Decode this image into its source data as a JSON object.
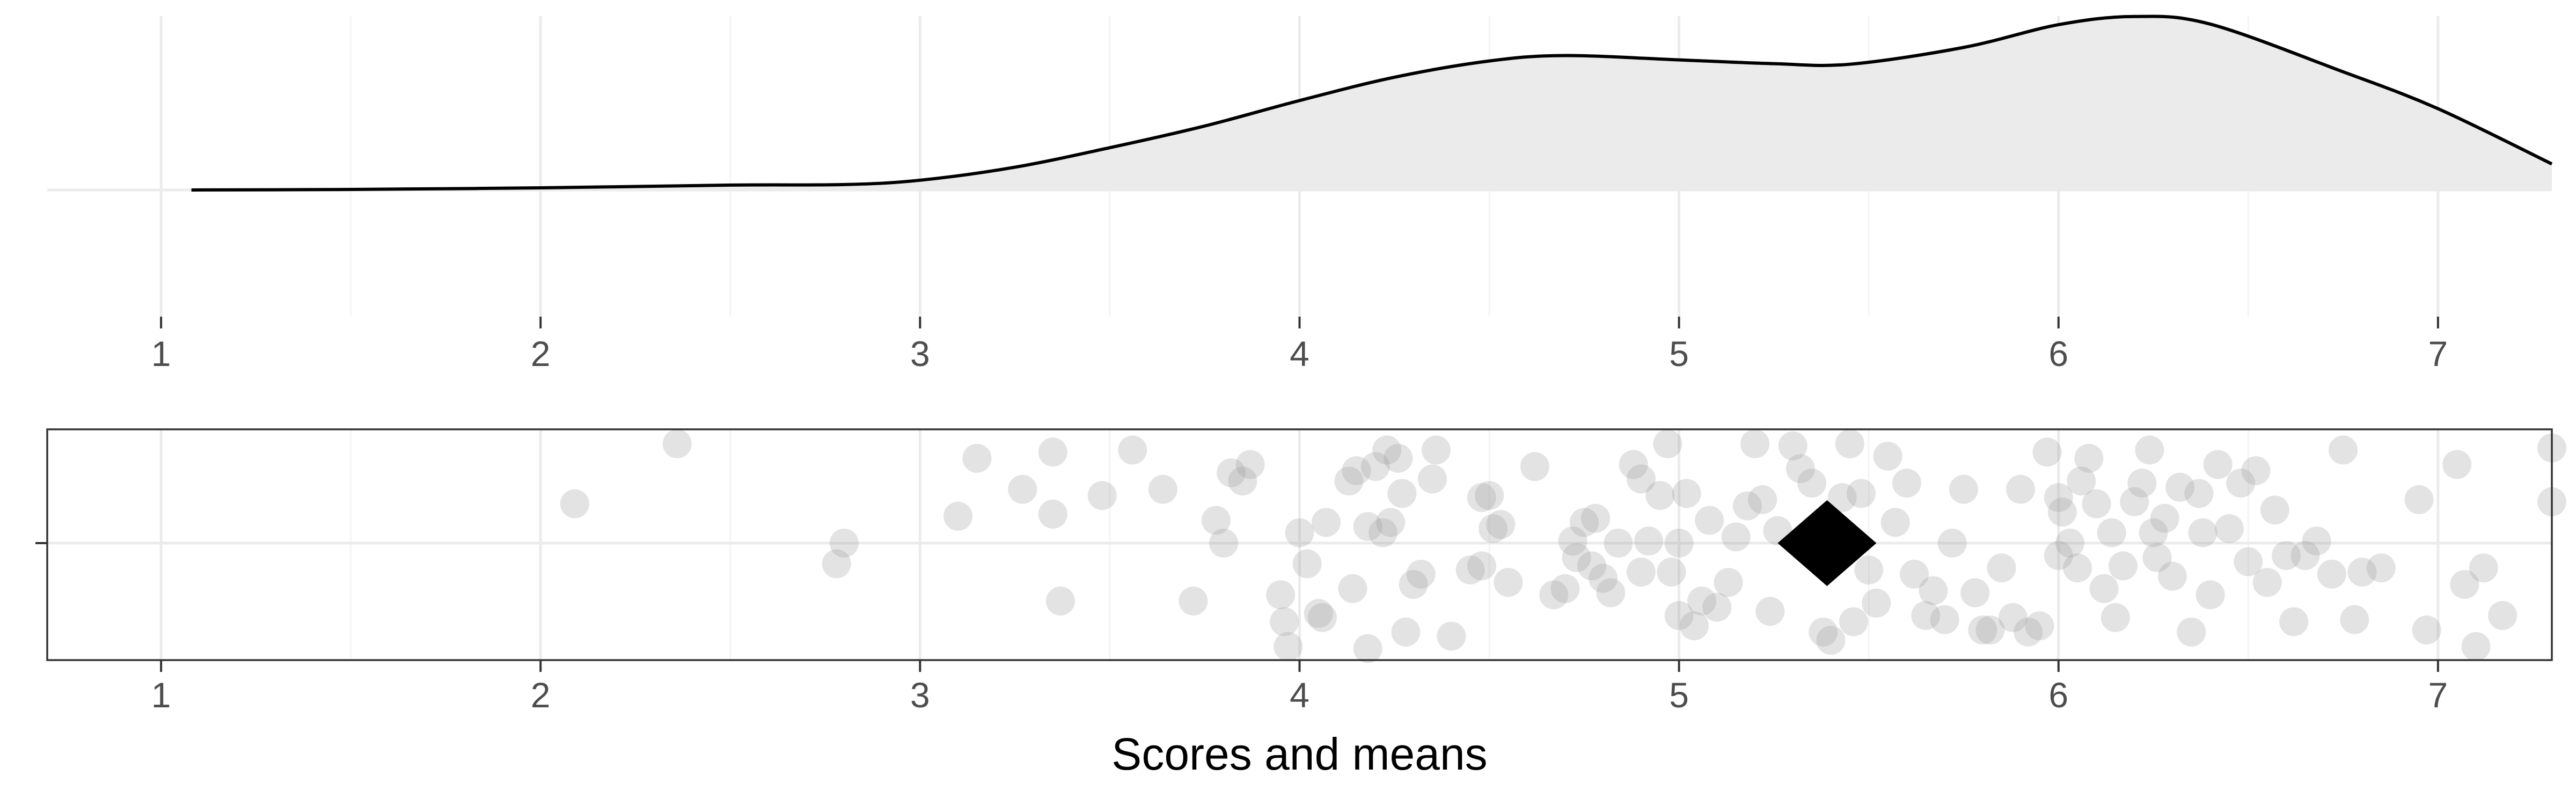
{
  "chart_data": [
    {
      "type": "area",
      "description_role": "density",
      "x_domain": [
        0.7,
        7.3
      ],
      "x_ticks": [
        "1",
        "2",
        "3",
        "4",
        "5",
        "6",
        "7"
      ],
      "x_tick_values": [
        1,
        2,
        3,
        4,
        5,
        6,
        7
      ],
      "x_minor_values": [
        1.5,
        2.5,
        3.5,
        4.5,
        5.5,
        6.5
      ],
      "ylim": [
        -0.02,
        0.33
      ],
      "grid": true,
      "fill_color": "#ebebeb",
      "line_color": "#000000",
      "density": [
        [
          1.08,
          0.0
        ],
        [
          1.5,
          0.001
        ],
        [
          2.0,
          0.004
        ],
        [
          2.5,
          0.009
        ],
        [
          2.8,
          0.01
        ],
        [
          3.0,
          0.018
        ],
        [
          3.25,
          0.042
        ],
        [
          3.5,
          0.078
        ],
        [
          3.75,
          0.118
        ],
        [
          4.0,
          0.165
        ],
        [
          4.25,
          0.208
        ],
        [
          4.5,
          0.238
        ],
        [
          4.7,
          0.248
        ],
        [
          5.0,
          0.24
        ],
        [
          5.25,
          0.233
        ],
        [
          5.45,
          0.232
        ],
        [
          5.75,
          0.263
        ],
        [
          6.0,
          0.305
        ],
        [
          6.2,
          0.32
        ],
        [
          6.4,
          0.306
        ],
        [
          6.75,
          0.218
        ],
        [
          7.0,
          0.15
        ],
        [
          7.3,
          0.048
        ]
      ]
    },
    {
      "type": "scatter",
      "xlabel": "Scores and means",
      "x_domain": [
        0.7,
        7.3
      ],
      "x_ticks": [
        "1",
        "2",
        "3",
        "4",
        "5",
        "6",
        "7"
      ],
      "x_tick_values": [
        1,
        2,
        3,
        4,
        5,
        6,
        7
      ],
      "x_minor_values": [
        1.5,
        2.5,
        3.5,
        4.5,
        5.5,
        6.5
      ],
      "y_domain": [
        -0.55,
        0.55
      ],
      "grid": true,
      "point_color": "#999999",
      "point_opacity": 0.28,
      "mean_marker": {
        "shape": "diamond",
        "x": 5.39,
        "y": 0.0,
        "color": "#000000"
      },
      "points": [
        [
          2.36,
          0.48
        ],
        [
          2.09,
          0.19
        ],
        [
          2.8,
          0.0
        ],
        [
          2.78,
          -0.1
        ],
        [
          3.1,
          0.13
        ],
        [
          3.15,
          0.41
        ],
        [
          3.27,
          0.26
        ],
        [
          3.35,
          0.44
        ],
        [
          3.35,
          0.14
        ],
        [
          3.37,
          -0.28
        ],
        [
          3.48,
          0.23
        ],
        [
          3.56,
          0.45
        ],
        [
          3.64,
          0.26
        ],
        [
          3.72,
          -0.28
        ],
        [
          3.78,
          0.11
        ],
        [
          3.8,
          0.0
        ],
        [
          3.82,
          0.34
        ],
        [
          3.85,
          0.3
        ],
        [
          3.87,
          0.38
        ],
        [
          3.95,
          -0.25
        ],
        [
          3.96,
          -0.38
        ],
        [
          3.97,
          -0.5
        ],
        [
          4.0,
          0.05
        ],
        [
          4.02,
          -0.1
        ],
        [
          4.05,
          -0.34
        ],
        [
          4.06,
          -0.36
        ],
        [
          4.07,
          0.1
        ],
        [
          4.13,
          0.3
        ],
        [
          4.14,
          -0.22
        ],
        [
          4.15,
          0.35
        ],
        [
          4.18,
          0.08
        ],
        [
          4.18,
          -0.51
        ],
        [
          4.2,
          0.37
        ],
        [
          4.22,
          0.05
        ],
        [
          4.23,
          0.45
        ],
        [
          4.24,
          0.1
        ],
        [
          4.26,
          0.41
        ],
        [
          4.27,
          0.24
        ],
        [
          4.28,
          -0.43
        ],
        [
          4.3,
          -0.2
        ],
        [
          4.32,
          -0.15
        ],
        [
          4.35,
          0.31
        ],
        [
          4.36,
          0.45
        ],
        [
          4.4,
          -0.45
        ],
        [
          4.45,
          -0.13
        ],
        [
          4.48,
          0.22
        ],
        [
          4.48,
          -0.11
        ],
        [
          4.5,
          0.23
        ],
        [
          4.51,
          0.07
        ],
        [
          4.53,
          0.09
        ],
        [
          4.55,
          -0.19
        ],
        [
          4.62,
          0.37
        ],
        [
          4.67,
          -0.25
        ],
        [
          4.7,
          -0.22
        ],
        [
          4.72,
          0.01
        ],
        [
          4.73,
          -0.07
        ],
        [
          4.75,
          0.1
        ],
        [
          4.77,
          -0.11
        ],
        [
          4.78,
          0.12
        ],
        [
          4.8,
          -0.17
        ],
        [
          4.82,
          -0.24
        ],
        [
          4.84,
          0.0
        ],
        [
          4.88,
          0.38
        ],
        [
          4.9,
          -0.14
        ],
        [
          4.9,
          0.31
        ],
        [
          4.92,
          0.01
        ],
        [
          4.95,
          0.23
        ],
        [
          4.97,
          0.48
        ],
        [
          4.98,
          -0.14
        ],
        [
          5.0,
          -0.35
        ],
        [
          5.0,
          0.0
        ],
        [
          5.02,
          0.24
        ],
        [
          5.04,
          -0.4
        ],
        [
          5.06,
          -0.28
        ],
        [
          5.08,
          0.11
        ],
        [
          5.1,
          -0.31
        ],
        [
          5.13,
          -0.19
        ],
        [
          5.15,
          0.03
        ],
        [
          5.18,
          0.18
        ],
        [
          5.2,
          0.48
        ],
        [
          5.22,
          0.21
        ],
        [
          5.24,
          -0.33
        ],
        [
          5.26,
          0.06
        ],
        [
          5.3,
          0.47
        ],
        [
          5.32,
          0.36
        ],
        [
          5.35,
          0.29
        ],
        [
          5.38,
          -0.43
        ],
        [
          5.4,
          -0.47
        ],
        [
          5.43,
          0.22
        ],
        [
          5.45,
          0.48
        ],
        [
          5.46,
          -0.38
        ],
        [
          5.48,
          0.24
        ],
        [
          5.5,
          -0.13
        ],
        [
          5.52,
          -0.29
        ],
        [
          5.55,
          0.42
        ],
        [
          5.57,
          0.1
        ],
        [
          5.6,
          0.29
        ],
        [
          5.62,
          -0.15
        ],
        [
          5.65,
          -0.35
        ],
        [
          5.67,
          -0.23
        ],
        [
          5.7,
          -0.37
        ],
        [
          5.72,
          0.0
        ],
        [
          5.75,
          0.26
        ],
        [
          5.78,
          -0.24
        ],
        [
          5.8,
          -0.42
        ],
        [
          5.82,
          -0.42
        ],
        [
          5.85,
          -0.12
        ],
        [
          5.88,
          -0.36
        ],
        [
          5.9,
          0.26
        ],
        [
          5.92,
          -0.43
        ],
        [
          5.95,
          -0.4
        ],
        [
          5.97,
          0.44
        ],
        [
          6.0,
          -0.06
        ],
        [
          6.0,
          0.22
        ],
        [
          6.01,
          0.15
        ],
        [
          6.03,
          0.0
        ],
        [
          6.05,
          -0.12
        ],
        [
          6.06,
          0.3
        ],
        [
          6.08,
          0.41
        ],
        [
          6.1,
          0.19
        ],
        [
          6.12,
          -0.22
        ],
        [
          6.14,
          0.05
        ],
        [
          6.15,
          -0.36
        ],
        [
          6.17,
          -0.11
        ],
        [
          6.2,
          0.2
        ],
        [
          6.22,
          0.29
        ],
        [
          6.24,
          0.45
        ],
        [
          6.25,
          0.05
        ],
        [
          6.26,
          -0.07
        ],
        [
          6.28,
          0.12
        ],
        [
          6.3,
          -0.16
        ],
        [
          6.32,
          0.27
        ],
        [
          6.35,
          -0.43
        ],
        [
          6.37,
          0.24
        ],
        [
          6.38,
          0.05
        ],
        [
          6.4,
          -0.25
        ],
        [
          6.42,
          0.38
        ],
        [
          6.45,
          0.07
        ],
        [
          6.48,
          0.29
        ],
        [
          6.5,
          -0.09
        ],
        [
          6.52,
          0.35
        ],
        [
          6.55,
          -0.19
        ],
        [
          6.57,
          0.16
        ],
        [
          6.6,
          -0.06
        ],
        [
          6.62,
          -0.38
        ],
        [
          6.65,
          -0.06
        ],
        [
          6.68,
          0.01
        ],
        [
          6.72,
          -0.15
        ],
        [
          6.75,
          0.45
        ],
        [
          6.78,
          -0.37
        ],
        [
          6.8,
          -0.14
        ],
        [
          6.85,
          -0.12
        ],
        [
          6.95,
          0.21
        ],
        [
          6.97,
          -0.42
        ],
        [
          7.05,
          0.38
        ],
        [
          7.07,
          -0.2
        ],
        [
          7.1,
          -0.5
        ],
        [
          7.12,
          -0.12
        ],
        [
          7.17,
          -0.35
        ],
        [
          7.3,
          0.2
        ],
        [
          7.3,
          0.46
        ]
      ]
    }
  ]
}
